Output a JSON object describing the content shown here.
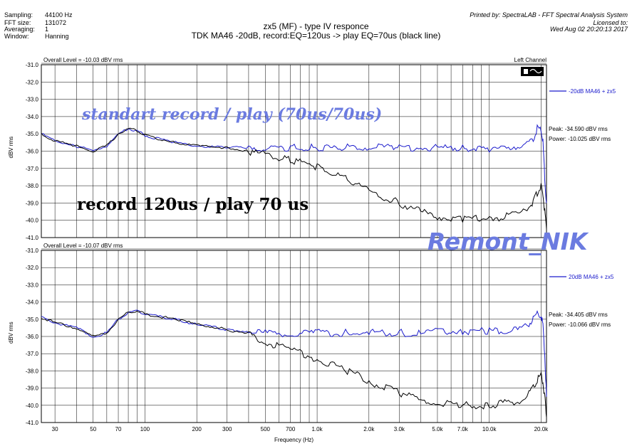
{
  "header": {
    "sampling_label": "Sampling:",
    "sampling_value": "44100 Hz",
    "fft_label": "FFT size:",
    "fft_value": "131072",
    "avg_label": "Averaging:",
    "avg_value": "1",
    "window_label": "Window:",
    "window_value": "Hanning",
    "printed_by": "Printed by: SpectraLAB - FFT Spectral Analysis System",
    "licensed_to": "Licensed to:",
    "timestamp": "Wed Aug 02 20:20:13 2017"
  },
  "title_line1": "zx5 (MF) - type IV responce",
  "title_line2": "TDK MA46  -20dB, record:EQ=120us -> play EQ=70us (black line)",
  "watermark": "Remont_NIK",
  "colors": {
    "blue": "#1a1acc",
    "black": "#000000",
    "annotation_blue": "#6b7be0",
    "grid": "#000000"
  },
  "chart_data": [
    {
      "type": "line",
      "overall_level": "Overall Level = -10.03 dBV rms",
      "channel": "Left Channel",
      "ylabel": "dBV rms",
      "ylim": [
        -41.0,
        -31.0
      ],
      "xscale": "log",
      "xlim": [
        25,
        21500
      ],
      "ytick_labels": [
        "-31.0",
        "-32.0",
        "-33.0",
        "-34.0",
        "-35.0",
        "-36.0",
        "-37.0",
        "-38.0",
        "-39.0",
        "-40.0",
        "-41.0"
      ],
      "legend": "-20dB MA46 + zx5",
      "peak": "Peak: -34.590 dBV rms",
      "power": "Power: -10.025 dBV rms",
      "annotation_blue": "standart record / play (70us/70us)",
      "annotation_black": "record 120us / play 70 us",
      "series": [
        {
          "color": "blue",
          "x": [
            25,
            30,
            40,
            50,
            60,
            70,
            80,
            90,
            100,
            150,
            200,
            300,
            400,
            500,
            700,
            1000,
            1500,
            2000,
            3000,
            4000,
            5000,
            7000,
            10000,
            12000,
            15000,
            17000,
            18000,
            19000,
            20000,
            20500,
            21000,
            21500
          ],
          "y": [
            -35.0,
            -35.4,
            -35.7,
            -36.0,
            -35.7,
            -35.0,
            -34.7,
            -34.8,
            -35.1,
            -35.5,
            -35.7,
            -35.8,
            -35.8,
            -35.8,
            -35.8,
            -35.8,
            -35.8,
            -35.8,
            -35.8,
            -35.8,
            -35.8,
            -35.8,
            -35.9,
            -35.8,
            -35.7,
            -35.5,
            -35.3,
            -34.7,
            -34.8,
            -35.5,
            -37.5,
            -39.0
          ]
        },
        {
          "color": "black",
          "x": [
            25,
            30,
            40,
            50,
            60,
            70,
            80,
            90,
            100,
            150,
            200,
            300,
            400,
            500,
            700,
            1000,
            1500,
            2000,
            3000,
            4000,
            5000,
            7000,
            10000,
            12000,
            15000,
            17000,
            18000,
            19000,
            20000,
            20500,
            21000,
            21500
          ],
          "y": [
            -35.0,
            -35.4,
            -35.7,
            -36.0,
            -35.7,
            -35.0,
            -34.7,
            -34.8,
            -35.1,
            -35.5,
            -35.7,
            -35.8,
            -36.0,
            -36.2,
            -36.5,
            -36.9,
            -37.6,
            -38.3,
            -39.0,
            -39.5,
            -39.8,
            -39.9,
            -39.9,
            -39.8,
            -39.6,
            -39.2,
            -38.9,
            -38.4,
            -38.0,
            -38.5,
            -39.5,
            -40.5
          ]
        }
      ]
    },
    {
      "type": "line",
      "overall_level": "Overall Level = -10.07 dBV rms",
      "ylabel": "dBV rms",
      "ylim": [
        -41.0,
        -31.0
      ],
      "xscale": "log",
      "xlim": [
        25,
        21500
      ],
      "ytick_labels": [
        "-31.0",
        "-32.0",
        "-33.0",
        "-34.0",
        "-35.0",
        "-36.0",
        "-37.0",
        "-38.0",
        "-39.0",
        "-40.0",
        "-41.0"
      ],
      "xtick_labels": [
        "30",
        "50",
        "70",
        "100",
        "200",
        "300",
        "500",
        "700",
        "1.0k",
        "2.0k",
        "3.0k",
        "5.0k",
        "7.0k",
        "10.0k",
        "20.0k"
      ],
      "xtick_values": [
        30,
        50,
        70,
        100,
        200,
        300,
        500,
        700,
        1000,
        2000,
        3000,
        5000,
        7000,
        10000,
        20000
      ],
      "xlabel": "Frequency (Hz)",
      "legend": "20dB MA46 + zx5",
      "peak": "Peak: -34.405 dBV rms",
      "power": "Power: -10.066 dBV rms",
      "series": [
        {
          "color": "blue",
          "x": [
            25,
            30,
            40,
            50,
            60,
            70,
            80,
            90,
            100,
            150,
            200,
            300,
            400,
            500,
            700,
            1000,
            1500,
            2000,
            3000,
            4000,
            5000,
            7000,
            10000,
            12000,
            15000,
            17000,
            18000,
            19000,
            20000,
            20500,
            21000,
            21500
          ],
          "y": [
            -34.9,
            -35.2,
            -35.5,
            -36.0,
            -35.8,
            -35.0,
            -34.6,
            -34.5,
            -34.7,
            -35.0,
            -35.3,
            -35.6,
            -35.7,
            -35.8,
            -35.8,
            -35.8,
            -35.8,
            -35.8,
            -35.8,
            -35.8,
            -35.7,
            -35.7,
            -35.7,
            -35.7,
            -35.6,
            -35.3,
            -35.0,
            -34.6,
            -34.8,
            -35.4,
            -37.0,
            -39.5
          ]
        },
        {
          "color": "black",
          "x": [
            25,
            30,
            40,
            50,
            60,
            70,
            80,
            90,
            100,
            150,
            200,
            300,
            400,
            500,
            700,
            1000,
            1500,
            2000,
            3000,
            4000,
            5000,
            7000,
            10000,
            12000,
            15000,
            17000,
            18000,
            19000,
            20000,
            20500,
            21000,
            21500
          ],
          "y": [
            -34.9,
            -35.2,
            -35.5,
            -36.0,
            -35.8,
            -35.0,
            -34.6,
            -34.5,
            -34.7,
            -35.0,
            -35.3,
            -35.6,
            -35.9,
            -36.3,
            -36.8,
            -37.3,
            -38.0,
            -38.6,
            -39.3,
            -39.7,
            -39.9,
            -40.0,
            -40.0,
            -39.9,
            -39.8,
            -39.3,
            -39.0,
            -38.5,
            -38.2,
            -38.7,
            -39.5,
            -40.7
          ]
        }
      ]
    }
  ]
}
